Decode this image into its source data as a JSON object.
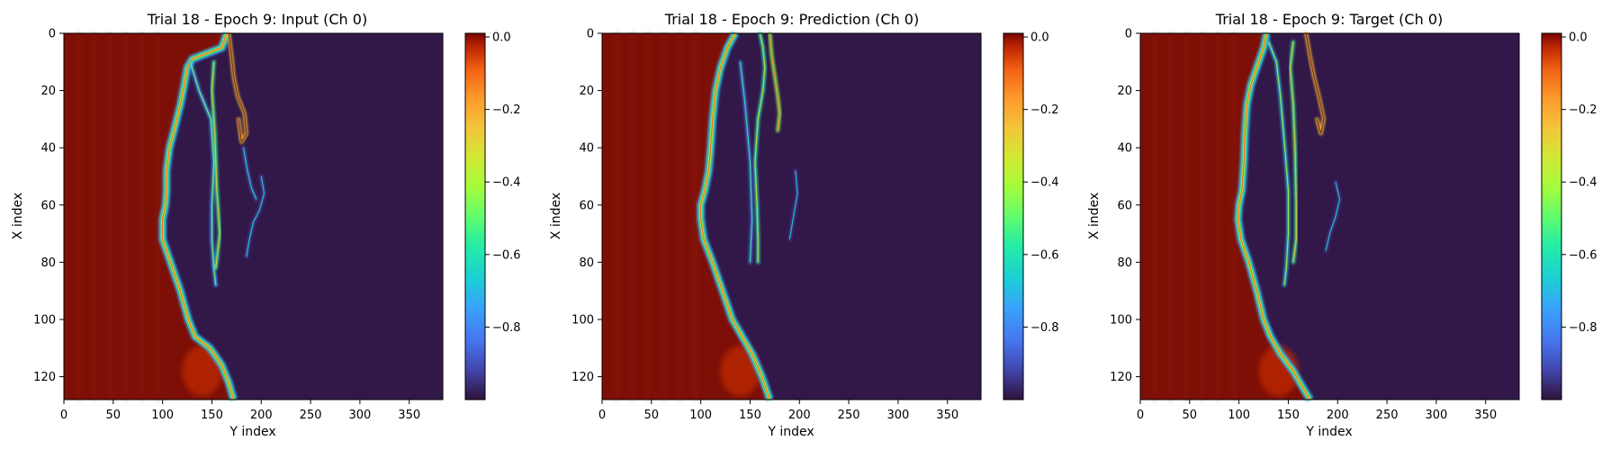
{
  "chart_data": [
    {
      "type": "heatmap",
      "title": "Trial 18 - Epoch 9: Input (Ch 0)",
      "xlabel": "Y index",
      "ylabel": "X index",
      "xlim": [
        0,
        384
      ],
      "ylim": [
        128,
        0
      ],
      "xticks": [
        0,
        50,
        100,
        150,
        200,
        250,
        300,
        350
      ],
      "yticks": [
        0,
        20,
        40,
        60,
        80,
        100,
        120
      ],
      "colorbar": {
        "ticks": [
          "0.0",
          "−0.2",
          "−0.4",
          "−0.6",
          "−0.8"
        ],
        "tick_values": [
          0.0,
          -0.2,
          -0.4,
          -0.6,
          -0.8
        ],
        "range": [
          -1.0,
          0.01
        ]
      },
      "colormap": "turbo",
      "front_y": [
        [
          0,
          165
        ],
        [
          5,
          160
        ],
        [
          9,
          130
        ],
        [
          12,
          125
        ],
        [
          18,
          122
        ],
        [
          25,
          118
        ],
        [
          32,
          113
        ],
        [
          40,
          107
        ],
        [
          48,
          104
        ],
        [
          55,
          104
        ],
        [
          60,
          103
        ],
        [
          65,
          100
        ],
        [
          72,
          100
        ],
        [
          80,
          108
        ],
        [
          90,
          118
        ],
        [
          100,
          126
        ],
        [
          106,
          133
        ],
        [
          110,
          148
        ],
        [
          116,
          160
        ],
        [
          122,
          167
        ],
        [
          128,
          172
        ]
      ],
      "tendrils": [
        {
          "points": [
            [
              10,
              128
            ],
            [
              20,
              137
            ],
            [
              30,
              149
            ],
            [
              45,
              152
            ],
            [
              60,
              150
            ],
            [
              72,
              150
            ],
            [
              82,
              152
            ],
            [
              88,
              154
            ]
          ],
          "level": -0.75
        },
        {
          "points": [
            [
              10,
              152
            ],
            [
              20,
              150
            ],
            [
              35,
              153
            ],
            [
              55,
              155
            ],
            [
              70,
              158
            ],
            [
              82,
              154
            ]
          ],
          "level": -0.55
        },
        {
          "points": [
            [
              0,
              167
            ],
            [
              8,
              170
            ],
            [
              15,
              172
            ],
            [
              22,
              176
            ],
            [
              28,
              183
            ],
            [
              35,
              185
            ],
            [
              38,
              180
            ],
            [
              30,
              177
            ]
          ],
          "level": -0.25
        },
        {
          "points": [
            [
              50,
              200
            ],
            [
              56,
              203
            ],
            [
              62,
              198
            ],
            [
              66,
              192
            ],
            [
              72,
              188
            ],
            [
              78,
              185
            ]
          ],
          "level": -0.92
        },
        {
          "points": [
            [
              40,
              182
            ],
            [
              48,
              186
            ],
            [
              54,
              190
            ],
            [
              58,
              195
            ]
          ],
          "level": -0.9
        }
      ]
    },
    {
      "type": "heatmap",
      "title": "Trial 18 - Epoch 9: Prediction (Ch 0)",
      "xlabel": "Y index",
      "ylabel": "X index",
      "xlim": [
        0,
        384
      ],
      "ylim": [
        128,
        0
      ],
      "xticks": [
        0,
        50,
        100,
        150,
        200,
        250,
        300,
        350
      ],
      "yticks": [
        0,
        20,
        40,
        60,
        80,
        100,
        120
      ],
      "colorbar": {
        "ticks": [
          "0.0",
          "−0.2",
          "−0.4",
          "−0.6",
          "−0.8"
        ],
        "tick_values": [
          0.0,
          -0.2,
          -0.4,
          -0.6,
          -0.8
        ],
        "range": [
          -1.0,
          0.01
        ]
      },
      "colormap": "turbo",
      "front_y": [
        [
          0,
          135
        ],
        [
          5,
          127
        ],
        [
          12,
          120
        ],
        [
          20,
          115
        ],
        [
          30,
          112
        ],
        [
          40,
          110
        ],
        [
          48,
          108
        ],
        [
          55,
          104
        ],
        [
          60,
          100
        ],
        [
          65,
          100
        ],
        [
          72,
          103
        ],
        [
          80,
          112
        ],
        [
          90,
          122
        ],
        [
          100,
          132
        ],
        [
          106,
          142
        ],
        [
          112,
          152
        ],
        [
          120,
          162
        ],
        [
          128,
          170
        ]
      ],
      "tendrils": [
        {
          "points": [
            [
              0,
              160
            ],
            [
              5,
              163
            ],
            [
              12,
              165
            ],
            [
              20,
              163
            ],
            [
              30,
              158
            ],
            [
              45,
              155
            ],
            [
              60,
              157
            ],
            [
              72,
              158
            ],
            [
              80,
              158
            ]
          ],
          "level": -0.6
        },
        {
          "points": [
            [
              0,
              170
            ],
            [
              8,
              172
            ],
            [
              15,
              175
            ],
            [
              22,
              178
            ],
            [
              28,
              180
            ],
            [
              34,
              178
            ]
          ],
          "level": -0.45
        },
        {
          "points": [
            [
              10,
              140
            ],
            [
              25,
              145
            ],
            [
              45,
              150
            ],
            [
              65,
              152
            ],
            [
              80,
              150
            ]
          ],
          "level": -0.85
        },
        {
          "points": [
            [
              48,
              196
            ],
            [
              56,
              198
            ],
            [
              64,
              194
            ],
            [
              72,
              190
            ]
          ],
          "level": -0.93
        }
      ]
    },
    {
      "type": "heatmap",
      "title": "Trial 18 - Epoch 9: Target (Ch 0)",
      "xlabel": "Y index",
      "ylabel": "X index",
      "xlim": [
        0,
        384
      ],
      "ylim": [
        128,
        0
      ],
      "xticks": [
        0,
        50,
        100,
        150,
        200,
        250,
        300,
        350
      ],
      "yticks": [
        0,
        20,
        40,
        60,
        80,
        100,
        120
      ],
      "colorbar": {
        "ticks": [
          "0.0",
          "−0.2",
          "−0.4",
          "−0.6",
          "−0.8"
        ],
        "tick_values": [
          0.0,
          -0.2,
          -0.4,
          -0.6,
          -0.8
        ],
        "range": [
          -1.0,
          0.01
        ]
      },
      "colormap": "turbo",
      "front_y": [
        [
          0,
          128
        ],
        [
          5,
          125
        ],
        [
          10,
          120
        ],
        [
          18,
          112
        ],
        [
          25,
          108
        ],
        [
          35,
          106
        ],
        [
          45,
          105
        ],
        [
          55,
          103
        ],
        [
          60,
          100
        ],
        [
          65,
          99
        ],
        [
          72,
          102
        ],
        [
          80,
          110
        ],
        [
          90,
          118
        ],
        [
          100,
          125
        ],
        [
          106,
          132
        ],
        [
          112,
          142
        ],
        [
          118,
          155
        ],
        [
          124,
          165
        ],
        [
          128,
          172
        ]
      ],
      "tendrils": [
        {
          "points": [
            [
              3,
              130
            ],
            [
              10,
              138
            ],
            [
              22,
              142
            ],
            [
              38,
              146
            ],
            [
              55,
              150
            ],
            [
              70,
              150
            ],
            [
              82,
              148
            ],
            [
              88,
              146
            ]
          ],
          "level": -0.7
        },
        {
          "points": [
            [
              3,
              155
            ],
            [
              12,
              152
            ],
            [
              25,
              155
            ],
            [
              42,
              157
            ],
            [
              60,
              158
            ],
            [
              72,
              158
            ],
            [
              80,
              155
            ]
          ],
          "level": -0.55
        },
        {
          "points": [
            [
              0,
              168
            ],
            [
              8,
              172
            ],
            [
              15,
              176
            ],
            [
              22,
              181
            ],
            [
              30,
              186
            ],
            [
              35,
              183
            ],
            [
              30,
              179
            ]
          ],
          "level": -0.25
        },
        {
          "points": [
            [
              52,
              198
            ],
            [
              58,
              202
            ],
            [
              64,
              198
            ],
            [
              70,
              192
            ],
            [
              76,
              188
            ]
          ],
          "level": -0.93
        }
      ]
    }
  ]
}
